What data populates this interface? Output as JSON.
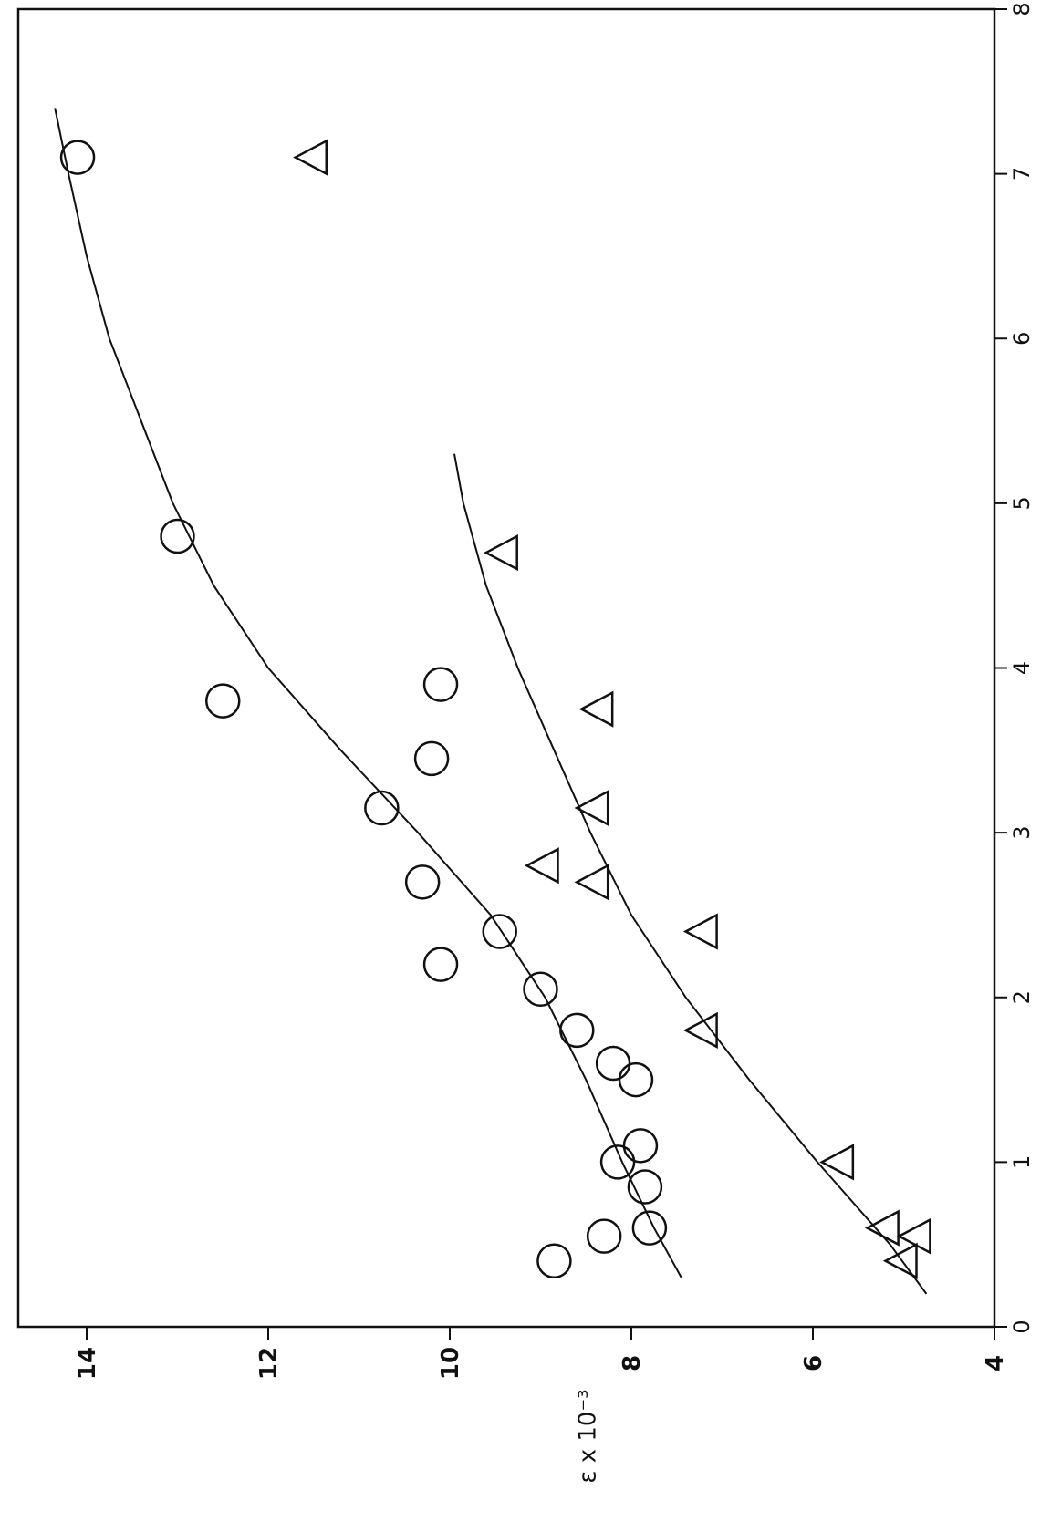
{
  "chart_data": {
    "type": "scatter",
    "orientation": "rotated-90",
    "title": "",
    "xlabel": "",
    "ylabel": "ε x 10⁻³",
    "xlim": [
      0,
      8
    ],
    "ylim": [
      4,
      15
    ],
    "x_ticks": [
      "0",
      "1",
      "2",
      "3",
      "4",
      "5",
      "6",
      "7",
      "8"
    ],
    "y_ticks": [
      "4",
      "6",
      "8",
      "10",
      "12",
      "14"
    ],
    "grid": false,
    "legend": "none",
    "series": [
      {
        "marker": "circle",
        "points": [
          [
            0.4,
            8.85
          ],
          [
            0.55,
            8.3
          ],
          [
            0.6,
            7.8
          ],
          [
            0.85,
            7.85
          ],
          [
            1.0,
            8.15
          ],
          [
            1.1,
            7.9
          ],
          [
            1.5,
            7.95
          ],
          [
            1.6,
            8.2
          ],
          [
            1.8,
            8.6
          ],
          [
            2.05,
            9.0
          ],
          [
            2.2,
            10.1
          ],
          [
            2.4,
            9.45
          ],
          [
            2.7,
            10.3
          ],
          [
            3.15,
            10.75
          ],
          [
            3.45,
            10.2
          ],
          [
            3.9,
            10.1
          ],
          [
            3.8,
            12.5
          ],
          [
            4.8,
            13.0
          ],
          [
            7.1,
            14.1
          ]
        ],
        "curve": [
          [
            0.3,
            7.45
          ],
          [
            0.6,
            7.75
          ],
          [
            1.0,
            8.1
          ],
          [
            1.5,
            8.5
          ],
          [
            2.0,
            8.95
          ],
          [
            2.5,
            9.55
          ],
          [
            3.0,
            10.35
          ],
          [
            3.5,
            11.2
          ],
          [
            4.0,
            12.0
          ],
          [
            4.5,
            12.6
          ],
          [
            5.0,
            13.05
          ],
          [
            5.5,
            13.4
          ],
          [
            6.0,
            13.75
          ],
          [
            6.5,
            14.0
          ],
          [
            7.0,
            14.2
          ],
          [
            7.4,
            14.35
          ]
        ]
      },
      {
        "marker": "triangle",
        "points": [
          [
            0.4,
            5.0
          ],
          [
            0.55,
            4.85
          ],
          [
            0.6,
            5.2
          ],
          [
            1.0,
            5.7
          ],
          [
            1.8,
            7.2
          ],
          [
            2.4,
            7.2
          ],
          [
            2.7,
            8.4
          ],
          [
            2.8,
            8.95
          ],
          [
            3.15,
            8.4
          ],
          [
            3.75,
            8.35
          ],
          [
            4.7,
            9.4
          ],
          [
            7.1,
            11.5
          ]
        ],
        "curve": [
          [
            0.2,
            4.75
          ],
          [
            0.5,
            5.15
          ],
          [
            1.0,
            5.95
          ],
          [
            1.5,
            6.7
          ],
          [
            2.0,
            7.4
          ],
          [
            2.5,
            8.0
          ],
          [
            3.0,
            8.45
          ],
          [
            3.5,
            8.85
          ],
          [
            4.0,
            9.25
          ],
          [
            4.5,
            9.6
          ],
          [
            5.0,
            9.85
          ],
          [
            5.3,
            9.95
          ]
        ]
      }
    ]
  }
}
